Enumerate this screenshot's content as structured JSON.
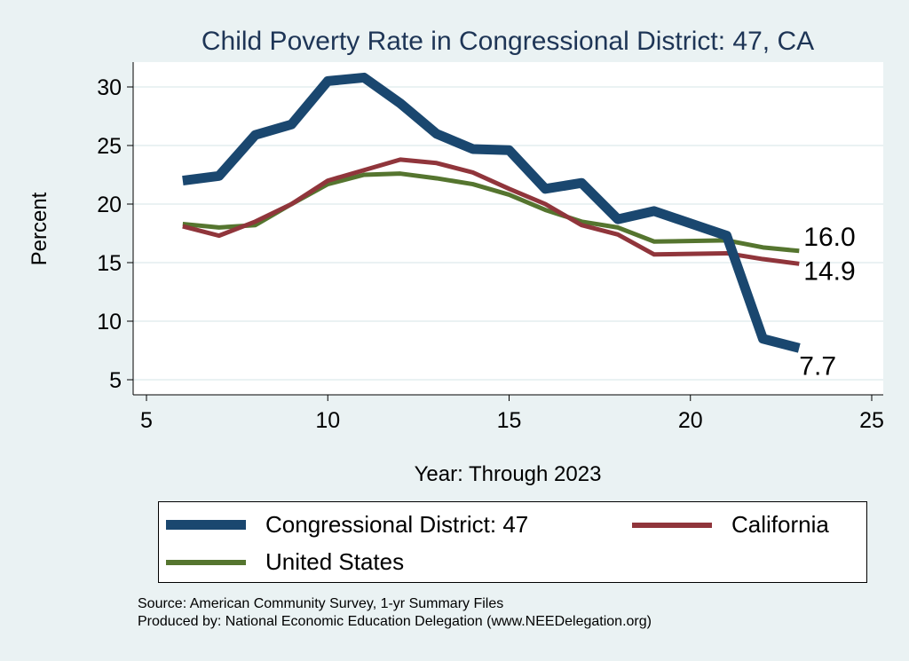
{
  "title": "Child Poverty Rate in Congressional District:  47, CA",
  "chart_data": {
    "type": "line",
    "title": "Child Poverty Rate in Congressional District:  47, CA",
    "xlabel": "Year: Through 2023",
    "ylabel": "Percent",
    "xlim": [
      5,
      25
    ],
    "ylim": [
      5,
      30
    ],
    "xticks": [
      5,
      10,
      15,
      20,
      25
    ],
    "yticks": [
      5,
      10,
      15,
      20,
      25,
      30
    ],
    "grid": true,
    "legend": "bottom",
    "series": [
      {
        "name": "Congressional District:  47",
        "color": "#1a476f",
        "x": [
          6,
          7,
          8,
          9,
          10,
          11,
          12,
          13,
          14,
          15,
          16,
          17,
          18,
          19,
          21,
          22,
          23
        ],
        "y": [
          22.0,
          22.4,
          25.9,
          26.8,
          30.5,
          30.8,
          28.6,
          26.0,
          24.7,
          24.6,
          21.3,
          21.8,
          18.7,
          19.4,
          17.3,
          8.5,
          7.7
        ],
        "end_label": "7.7"
      },
      {
        "name": "California",
        "color": "#90353b",
        "x": [
          6,
          7,
          8,
          9,
          10,
          11,
          12,
          13,
          14,
          15,
          16,
          17,
          18,
          19,
          21,
          22,
          23
        ],
        "y": [
          18.1,
          17.3,
          18.5,
          20.0,
          22.0,
          22.9,
          23.8,
          23.5,
          22.7,
          21.3,
          20.0,
          18.2,
          17.4,
          15.7,
          15.8,
          15.3,
          14.9
        ],
        "end_label": "14.9"
      },
      {
        "name": "United States",
        "color": "#55752f",
        "x": [
          6,
          7,
          8,
          9,
          10,
          11,
          12,
          13,
          14,
          15,
          16,
          17,
          18,
          19,
          21,
          22,
          23
        ],
        "y": [
          18.3,
          18.0,
          18.2,
          20.0,
          21.7,
          22.5,
          22.6,
          22.2,
          21.7,
          20.8,
          19.5,
          18.5,
          18.0,
          16.8,
          16.9,
          16.3,
          16.0
        ],
        "end_label": "16.0"
      }
    ]
  },
  "source": "Source: American Community Survey, 1-yr Summary Files",
  "produced_by": "Produced by: National Economic Education Delegation (www.NEEDelegation.org)"
}
